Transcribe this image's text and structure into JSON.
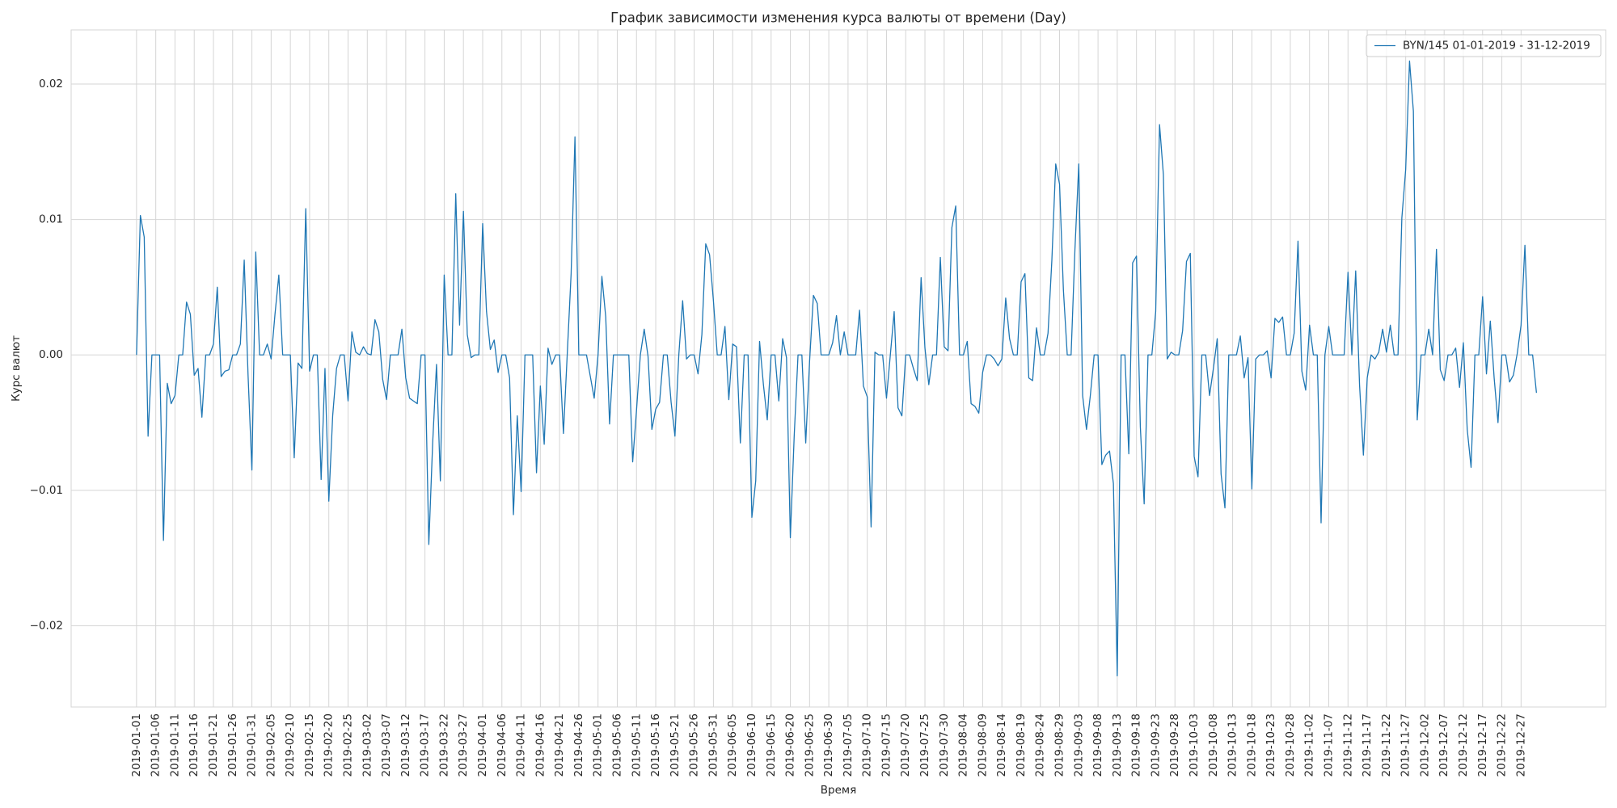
{
  "chart_data": {
    "type": "line",
    "title": "График зависимости изменения курса валюты от времени (Day)",
    "xlabel": "Время",
    "ylabel": "Курс валют",
    "legend": "upper right",
    "grid": true,
    "x": [
      "2019-01-01",
      "2019-01-02",
      "2019-01-03",
      "2019-01-04",
      "2019-01-05",
      "2019-01-06",
      "2019-01-07",
      "2019-01-08",
      "2019-01-09",
      "2019-01-10",
      "2019-01-11",
      "2019-01-12",
      "2019-01-13",
      "2019-01-14",
      "2019-01-15",
      "2019-01-16",
      "2019-01-17",
      "2019-01-18",
      "2019-01-19",
      "2019-01-20",
      "2019-01-21",
      "2019-01-22",
      "2019-01-23",
      "2019-01-24",
      "2019-01-25",
      "2019-01-26",
      "2019-01-27",
      "2019-01-28",
      "2019-01-29",
      "2019-01-30",
      "2019-01-31",
      "2019-02-01",
      "2019-02-02",
      "2019-02-03",
      "2019-02-04",
      "2019-02-05",
      "2019-02-06",
      "2019-02-07",
      "2019-02-08",
      "2019-02-09",
      "2019-02-10",
      "2019-02-11",
      "2019-02-12",
      "2019-02-13",
      "2019-02-14",
      "2019-02-15",
      "2019-02-16",
      "2019-02-17",
      "2019-02-18",
      "2019-02-19",
      "2019-02-20",
      "2019-02-21",
      "2019-02-22",
      "2019-02-23",
      "2019-02-24",
      "2019-02-25",
      "2019-02-26",
      "2019-02-27",
      "2019-02-28",
      "2019-03-01",
      "2019-03-02",
      "2019-03-03",
      "2019-03-04",
      "2019-03-05",
      "2019-03-06",
      "2019-03-07",
      "2019-03-08",
      "2019-03-09",
      "2019-03-10",
      "2019-03-11",
      "2019-03-12",
      "2019-03-13",
      "2019-03-14",
      "2019-03-15",
      "2019-03-16",
      "2019-03-17",
      "2019-03-18",
      "2019-03-19",
      "2019-03-20",
      "2019-03-21",
      "2019-03-22",
      "2019-03-23",
      "2019-03-24",
      "2019-03-25",
      "2019-03-26",
      "2019-03-27",
      "2019-03-28",
      "2019-03-29",
      "2019-03-30",
      "2019-03-31",
      "2019-04-01",
      "2019-04-02",
      "2019-04-03",
      "2019-04-04",
      "2019-04-05",
      "2019-04-06",
      "2019-04-07",
      "2019-04-08",
      "2019-04-09",
      "2019-04-10",
      "2019-04-11",
      "2019-04-12",
      "2019-04-13",
      "2019-04-14",
      "2019-04-15",
      "2019-04-16",
      "2019-04-17",
      "2019-04-18",
      "2019-04-19",
      "2019-04-20",
      "2019-04-21",
      "2019-04-22",
      "2019-04-23",
      "2019-04-24",
      "2019-04-25",
      "2019-04-26",
      "2019-04-27",
      "2019-04-28",
      "2019-04-29",
      "2019-04-30",
      "2019-05-01",
      "2019-05-02",
      "2019-05-03",
      "2019-05-04",
      "2019-05-05",
      "2019-05-06",
      "2019-05-07",
      "2019-05-08",
      "2019-05-09",
      "2019-05-10",
      "2019-05-11",
      "2019-05-12",
      "2019-05-13",
      "2019-05-14",
      "2019-05-15",
      "2019-05-16",
      "2019-05-17",
      "2019-05-18",
      "2019-05-19",
      "2019-05-20",
      "2019-05-21",
      "2019-05-22",
      "2019-05-23",
      "2019-05-24",
      "2019-05-25",
      "2019-05-26",
      "2019-05-27",
      "2019-05-28",
      "2019-05-29",
      "2019-05-30",
      "2019-05-31",
      "2019-06-01",
      "2019-06-02",
      "2019-06-03",
      "2019-06-04",
      "2019-06-05",
      "2019-06-06",
      "2019-06-07",
      "2019-06-08",
      "2019-06-09",
      "2019-06-10",
      "2019-06-11",
      "2019-06-12",
      "2019-06-13",
      "2019-06-14",
      "2019-06-15",
      "2019-06-16",
      "2019-06-17",
      "2019-06-18",
      "2019-06-19",
      "2019-06-20",
      "2019-06-21",
      "2019-06-22",
      "2019-06-23",
      "2019-06-24",
      "2019-06-25",
      "2019-06-26",
      "2019-06-27",
      "2019-06-28",
      "2019-06-29",
      "2019-06-30",
      "2019-07-01",
      "2019-07-02",
      "2019-07-03",
      "2019-07-04",
      "2019-07-05",
      "2019-07-06",
      "2019-07-07",
      "2019-07-08",
      "2019-07-09",
      "2019-07-10",
      "2019-07-11",
      "2019-07-12",
      "2019-07-13",
      "2019-07-14",
      "2019-07-15",
      "2019-07-16",
      "2019-07-17",
      "2019-07-18",
      "2019-07-19",
      "2019-07-20",
      "2019-07-21",
      "2019-07-22",
      "2019-07-23",
      "2019-07-24",
      "2019-07-25",
      "2019-07-26",
      "2019-07-27",
      "2019-07-28",
      "2019-07-29",
      "2019-07-30",
      "2019-07-31",
      "2019-08-01",
      "2019-08-02",
      "2019-08-03",
      "2019-08-04",
      "2019-08-05",
      "2019-08-06",
      "2019-08-07",
      "2019-08-08",
      "2019-08-09",
      "2019-08-10",
      "2019-08-11",
      "2019-08-12",
      "2019-08-13",
      "2019-08-14",
      "2019-08-15",
      "2019-08-16",
      "2019-08-17",
      "2019-08-18",
      "2019-08-19",
      "2019-08-20",
      "2019-08-21",
      "2019-08-22",
      "2019-08-23",
      "2019-08-24",
      "2019-08-25",
      "2019-08-26",
      "2019-08-27",
      "2019-08-28",
      "2019-08-29",
      "2019-08-30",
      "2019-08-31",
      "2019-09-01",
      "2019-09-02",
      "2019-09-03",
      "2019-09-04",
      "2019-09-05",
      "2019-09-06",
      "2019-09-07",
      "2019-09-08",
      "2019-09-09",
      "2019-09-10",
      "2019-09-11",
      "2019-09-12",
      "2019-09-13",
      "2019-09-14",
      "2019-09-15",
      "2019-09-16",
      "2019-09-17",
      "2019-09-18",
      "2019-09-19",
      "2019-09-20",
      "2019-09-21",
      "2019-09-22",
      "2019-09-23",
      "2019-09-24",
      "2019-09-25",
      "2019-09-26",
      "2019-09-27",
      "2019-09-28",
      "2019-09-29",
      "2019-09-30",
      "2019-10-01",
      "2019-10-02",
      "2019-10-03",
      "2019-10-04",
      "2019-10-05",
      "2019-10-06",
      "2019-10-07",
      "2019-10-08",
      "2019-10-09",
      "2019-10-10",
      "2019-10-11",
      "2019-10-12",
      "2019-10-13",
      "2019-10-14",
      "2019-10-15",
      "2019-10-16",
      "2019-10-17",
      "2019-10-18",
      "2019-10-19",
      "2019-10-20",
      "2019-10-21",
      "2019-10-22",
      "2019-10-23",
      "2019-10-24",
      "2019-10-25",
      "2019-10-26",
      "2019-10-27",
      "2019-10-28",
      "2019-10-29",
      "2019-10-30",
      "2019-10-31",
      "2019-11-01",
      "2019-11-02",
      "2019-11-03",
      "2019-11-04",
      "2019-11-05",
      "2019-11-06",
      "2019-11-07",
      "2019-11-08",
      "2019-11-09",
      "2019-11-10",
      "2019-11-11",
      "2019-11-12",
      "2019-11-13",
      "2019-11-14",
      "2019-11-15",
      "2019-11-16",
      "2019-11-17",
      "2019-11-18",
      "2019-11-19",
      "2019-11-20",
      "2019-11-21",
      "2019-11-22",
      "2019-11-23",
      "2019-11-24",
      "2019-11-25",
      "2019-11-26",
      "2019-11-27",
      "2019-11-28",
      "2019-11-29",
      "2019-11-30",
      "2019-12-01",
      "2019-12-02",
      "2019-12-03",
      "2019-12-04",
      "2019-12-05",
      "2019-12-06",
      "2019-12-07",
      "2019-12-08",
      "2019-12-09",
      "2019-12-10",
      "2019-12-11",
      "2019-12-12",
      "2019-12-13",
      "2019-12-14",
      "2019-12-15",
      "2019-12-16",
      "2019-12-17",
      "2019-12-18",
      "2019-12-19",
      "2019-12-20",
      "2019-12-21",
      "2019-12-22",
      "2019-12-23",
      "2019-12-24",
      "2019-12-25",
      "2019-12-26",
      "2019-12-27",
      "2019-12-28",
      "2019-12-29",
      "2019-12-30",
      "2019-12-31"
    ],
    "series": [
      {
        "name": "BYN/145 01-01-2019 - 31-12-2019",
        "color": "#1f77b4",
        "values": [
          0,
          0.0103,
          0.0087,
          -0.006,
          0,
          0,
          0,
          -0.0137,
          -0.0021,
          -0.0036,
          -0.003,
          0,
          0,
          0.0039,
          0.003,
          -0.0015,
          -0.001,
          -0.0046,
          0,
          0,
          0.0008,
          0.005,
          -0.0016,
          -0.0012,
          -0.0011,
          0,
          0,
          0.0008,
          0.007,
          -0.0015,
          -0.0085,
          0.0076,
          0,
          0,
          0.0008,
          -0.0003,
          0.003,
          0.0059,
          0,
          0,
          0,
          -0.0076,
          -0.0006,
          -0.001,
          0.0108,
          -0.0012,
          0,
          0,
          -0.0092,
          -0.001,
          -0.0108,
          -0.0045,
          -0.001,
          0,
          0,
          -0.0034,
          0.0017,
          0.0002,
          0,
          0.0006,
          0.0001,
          0,
          0.0026,
          0.0017,
          -0.0018,
          -0.0033,
          0,
          0,
          0,
          0.0019,
          -0.0017,
          -0.0032,
          -0.0034,
          -0.0036,
          0,
          0,
          -0.014,
          -0.0065,
          -0.0007,
          -0.0093,
          0.0059,
          0,
          0,
          0.0119,
          0.0022,
          0.0106,
          0.0015,
          -0.0002,
          0,
          0,
          0.0097,
          0.0032,
          0.0004,
          0.0011,
          -0.0013,
          0,
          0,
          -0.0017,
          -0.0118,
          -0.0045,
          -0.0101,
          0,
          0,
          0,
          -0.0087,
          -0.0023,
          -0.0066,
          0.0005,
          -0.0007,
          0,
          0,
          -0.0058,
          0.0001,
          0.006,
          0.0161,
          0,
          0,
          0,
          -0.0016,
          -0.0032,
          0,
          0.0058,
          0.0028,
          -0.0051,
          0,
          0,
          0,
          0,
          0,
          -0.0079,
          -0.0041,
          0,
          0.0019,
          -0.0001,
          -0.0055,
          -0.004,
          -0.0035,
          0,
          0,
          -0.0035,
          -0.006,
          0,
          0.004,
          -0.0003,
          0,
          0,
          -0.0014,
          0.0015,
          0.0082,
          0.0074,
          0.004,
          0,
          0,
          0.0021,
          -0.0033,
          0.0008,
          0.0006,
          -0.0065,
          0,
          0,
          -0.012,
          -0.0093,
          0.001,
          -0.0022,
          -0.0048,
          0,
          0,
          -0.0034,
          0.0012,
          -0.0002,
          -0.0135,
          -0.006,
          0,
          0,
          -0.0065,
          -0.0005,
          0.0044,
          0.0038,
          0,
          0,
          0,
          0.0009,
          0.0029,
          0,
          0.0017,
          0,
          0,
          0,
          0.0033,
          -0.0023,
          -0.0031,
          -0.0127,
          0.0002,
          0,
          0,
          -0.0032,
          0,
          0.0032,
          -0.0039,
          -0.0045,
          0,
          0,
          -0.001,
          -0.0019,
          0.0057,
          0.0005,
          -0.0022,
          0,
          0,
          0.0072,
          0.0006,
          0.0003,
          0.0094,
          0.011,
          0,
          0,
          0.001,
          -0.0036,
          -0.0038,
          -0.0043,
          -0.0013,
          0,
          0,
          -0.0003,
          -0.0008,
          -0.0003,
          0.0042,
          0.0012,
          0,
          0,
          0.0054,
          0.006,
          -0.0017,
          -0.0019,
          0.002,
          0,
          0,
          0.0016,
          0.007,
          0.0141,
          0.0126,
          0.0048,
          0,
          0,
          0.0078,
          0.0141,
          -0.003,
          -0.0055,
          -0.003,
          0,
          0,
          -0.0081,
          -0.0074,
          -0.0071,
          -0.0095,
          -0.0237,
          0,
          0,
          -0.0073,
          0.0068,
          0.0073,
          -0.0053,
          -0.011,
          0,
          0,
          0.0032,
          0.017,
          0.0133,
          -0.0003,
          0.0002,
          0,
          0,
          0.0018,
          0.0069,
          0.0075,
          -0.0075,
          -0.009,
          0,
          0,
          -0.003,
          -0.001,
          0.0012,
          -0.0088,
          -0.0113,
          0,
          0,
          0,
          0.0014,
          -0.0017,
          -0.0002,
          -0.0099,
          -0.0003,
          0,
          0,
          0.0003,
          -0.0017,
          0.0027,
          0.0024,
          0.0028,
          0,
          0,
          0.0016,
          0.0084,
          -0.0012,
          -0.0026,
          0.0022,
          0,
          0,
          -0.0124,
          0,
          0.0021,
          0,
          0,
          0,
          0,
          0.0061,
          0,
          0.0062,
          -0.0022,
          -0.0074,
          -0.0017,
          0,
          -0.0003,
          0.0002,
          0.0019,
          0.0002,
          0.0022,
          0,
          0,
          0.0101,
          0.0137,
          0.0217,
          0.018,
          -0.0048,
          0,
          0,
          0.0019,
          0,
          0.0078,
          -0.0011,
          -0.0019,
          0,
          0,
          0.0005,
          -0.0024,
          0.0009,
          -0.0055,
          -0.0083,
          0,
          0,
          0.0043,
          -0.0014,
          0.0025,
          -0.0017,
          -0.005,
          0,
          0,
          -0.002,
          -0.0015,
          0.0001,
          0.0022,
          0.0081,
          0,
          0,
          -0.0028
        ]
      }
    ],
    "xlim": [
      "2018-12-15",
      "2020-01-18"
    ],
    "xticks": [
      "2019-01-01",
      "2019-01-06",
      "2019-01-11",
      "2019-01-16",
      "2019-01-21",
      "2019-01-26",
      "2019-01-31",
      "2019-02-05",
      "2019-02-10",
      "2019-02-15",
      "2019-02-20",
      "2019-02-25",
      "2019-03-02",
      "2019-03-07",
      "2019-03-12",
      "2019-03-17",
      "2019-03-22",
      "2019-03-27",
      "2019-04-01",
      "2019-04-06",
      "2019-04-11",
      "2019-04-16",
      "2019-04-21",
      "2019-04-26",
      "2019-05-01",
      "2019-05-06",
      "2019-05-11",
      "2019-05-16",
      "2019-05-21",
      "2019-05-26",
      "2019-05-31",
      "2019-06-05",
      "2019-06-10",
      "2019-06-15",
      "2019-06-20",
      "2019-06-25",
      "2019-06-30",
      "2019-07-05",
      "2019-07-10",
      "2019-07-15",
      "2019-07-20",
      "2019-07-25",
      "2019-07-30",
      "2019-08-04",
      "2019-08-09",
      "2019-08-14",
      "2019-08-19",
      "2019-08-24",
      "2019-08-29",
      "2019-09-03",
      "2019-09-08",
      "2019-09-13",
      "2019-09-18",
      "2019-09-23",
      "2019-09-28",
      "2019-10-03",
      "2019-10-08",
      "2019-10-13",
      "2019-10-18",
      "2019-10-23",
      "2019-10-28",
      "2019-11-02",
      "2019-11-07",
      "2019-11-12",
      "2019-11-17",
      "2019-11-22",
      "2019-11-27",
      "2019-12-02",
      "2019-12-07",
      "2019-12-12",
      "2019-12-17",
      "2019-12-22",
      "2019-12-27"
    ],
    "ylim": [
      -0.026,
      0.024
    ],
    "yticks": [
      {
        "value": -0.02,
        "label": "−0.02"
      },
      {
        "value": -0.01,
        "label": "−0.01"
      },
      {
        "value": 0,
        "label": "0.00"
      },
      0.01,
      0.02
    ]
  }
}
